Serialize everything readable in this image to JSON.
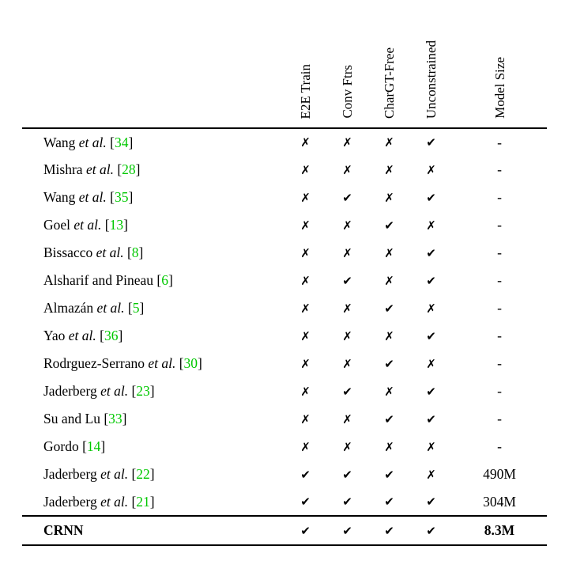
{
  "accent_green": "#00C800",
  "icons": {
    "check": "✔",
    "cross": "✗"
  },
  "table": {
    "columns": [
      "E2E Train",
      "Conv Ftrs",
      "CharGT-Free",
      "Unconstrained",
      "Model Size"
    ],
    "rows": [
      {
        "name": "Wang",
        "etal": "et al.",
        "cite": "34",
        "marks": [
          false,
          false,
          false,
          true
        ],
        "size": "-",
        "bold": false
      },
      {
        "name": "Mishra",
        "etal": "et al.",
        "cite": "28",
        "marks": [
          false,
          false,
          false,
          false
        ],
        "size": "-",
        "bold": false
      },
      {
        "name": "Wang",
        "etal": "et al.",
        "cite": "35",
        "marks": [
          false,
          true,
          false,
          true
        ],
        "size": "-",
        "bold": false
      },
      {
        "name": "Goel",
        "etal": "et al.",
        "cite": "13",
        "marks": [
          false,
          false,
          true,
          false
        ],
        "size": "-",
        "bold": false
      },
      {
        "name": "Bissacco",
        "etal": "et al.",
        "cite": "8",
        "marks": [
          false,
          false,
          false,
          true
        ],
        "size": "-",
        "bold": false
      },
      {
        "name": "Alsharif and Pineau",
        "etal": "",
        "cite": "6",
        "marks": [
          false,
          true,
          false,
          true
        ],
        "size": "-",
        "bold": false
      },
      {
        "name": "Almazán",
        "etal": "et al.",
        "cite": "5",
        "marks": [
          false,
          false,
          true,
          false
        ],
        "size": "-",
        "bold": false
      },
      {
        "name": "Yao",
        "etal": "et al.",
        "cite": "36",
        "marks": [
          false,
          false,
          false,
          true
        ],
        "size": "-",
        "bold": false
      },
      {
        "name": "Rodrguez-Serrano",
        "etal": "et al.",
        "cite": "30",
        "marks": [
          false,
          false,
          true,
          false
        ],
        "size": "-",
        "bold": false
      },
      {
        "name": "Jaderberg",
        "etal": "et al.",
        "cite": "23",
        "marks": [
          false,
          true,
          false,
          true
        ],
        "size": "-",
        "bold": false
      },
      {
        "name": "Su and Lu",
        "etal": "",
        "cite": "33",
        "marks": [
          false,
          false,
          true,
          true
        ],
        "size": "-",
        "bold": false
      },
      {
        "name": "Gordo",
        "etal": "",
        "cite": "14",
        "marks": [
          false,
          false,
          false,
          false
        ],
        "size": "-",
        "bold": false
      },
      {
        "name": "Jaderberg",
        "etal": "et al.",
        "cite": "22",
        "marks": [
          true,
          true,
          true,
          false
        ],
        "size": "490M",
        "bold": false
      },
      {
        "name": "Jaderberg",
        "etal": "et al.",
        "cite": "21",
        "marks": [
          true,
          true,
          true,
          true
        ],
        "size": "304M",
        "bold": false
      },
      {
        "name": "CRNN",
        "etal": "",
        "cite": "",
        "marks": [
          true,
          true,
          true,
          true
        ],
        "size": "8.3M",
        "bold": true
      }
    ]
  }
}
